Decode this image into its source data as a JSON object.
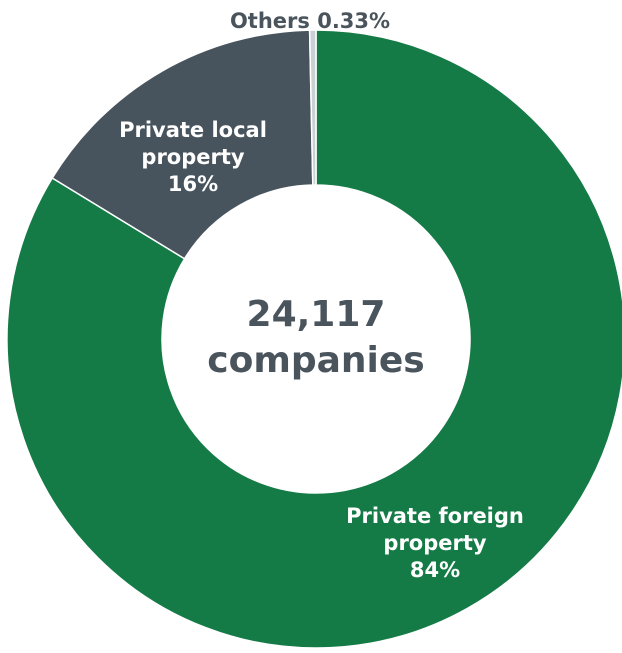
{
  "chart_data": {
    "type": "donut",
    "categories": [
      "Private foreign property",
      "Private local property",
      "Others"
    ],
    "values": [
      84,
      16,
      0.33
    ],
    "value_labels": [
      "84%",
      "16%",
      "0.33%"
    ],
    "colors": [
      "#147a46",
      "#48545d",
      "#c9d1d5"
    ],
    "center_text": [
      "24,117",
      "companies"
    ]
  }
}
